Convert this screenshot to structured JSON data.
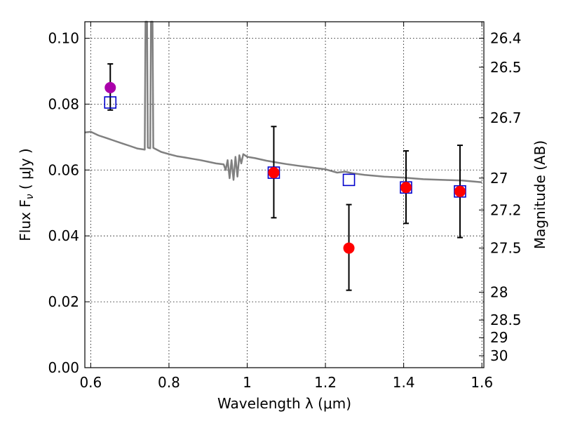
{
  "chart_data": {
    "type": "scatter",
    "xlabel": "Wavelength  λ (μm)",
    "ylabel": "Flux  F",
    "ylabel_sub": "ν",
    "ylabel_unit": " ( μJy )",
    "y2label": "Magnitude (AB)",
    "xlim": [
      0.585,
      1.605
    ],
    "ylim": [
      0.0,
      0.105
    ],
    "grid": true,
    "x_ticks": [
      {
        "value": 0.6,
        "label": "0.6"
      },
      {
        "value": 0.8,
        "label": "0.8"
      },
      {
        "value": 1.0,
        "label": "1"
      },
      {
        "value": 1.2,
        "label": "1.2"
      },
      {
        "value": 1.4,
        "label": "1.4"
      },
      {
        "value": 1.6,
        "label": "1.6"
      }
    ],
    "y_ticks": [
      {
        "value": 0.0,
        "label": "0.00"
      },
      {
        "value": 0.02,
        "label": "0.02"
      },
      {
        "value": 0.04,
        "label": "0.04"
      },
      {
        "value": 0.06,
        "label": "0.06"
      },
      {
        "value": 0.08,
        "label": "0.08"
      },
      {
        "value": 0.1,
        "label": "0.10"
      }
    ],
    "y2_ticks": [
      {
        "mag": 26.4,
        "label": "26.4"
      },
      {
        "mag": 26.5,
        "label": "26.5"
      },
      {
        "mag": 26.7,
        "label": "26.7"
      },
      {
        "mag": 27.0,
        "label": "27"
      },
      {
        "mag": 27.2,
        "label": "27.2"
      },
      {
        "mag": 27.5,
        "label": "27.5"
      },
      {
        "mag": 28.0,
        "label": "28"
      },
      {
        "mag": 28.5,
        "label": "28.5"
      },
      {
        "mag": 29.0,
        "label": "29"
      },
      {
        "mag": 30.0,
        "label": "30"
      }
    ],
    "sed_model": {
      "color": "#808080",
      "points": [
        [
          0.585,
          0.0714
        ],
        [
          0.6,
          0.0716
        ],
        [
          0.62,
          0.0705
        ],
        [
          0.64,
          0.0697
        ],
        [
          0.66,
          0.0689
        ],
        [
          0.68,
          0.0681
        ],
        [
          0.7,
          0.0673
        ],
        [
          0.72,
          0.0665
        ],
        [
          0.738,
          0.0662
        ],
        [
          0.74,
          0.105
        ],
        [
          0.744,
          0.105
        ],
        [
          0.746,
          0.0668
        ],
        [
          0.752,
          0.0666
        ],
        [
          0.754,
          0.105
        ],
        [
          0.758,
          0.105
        ],
        [
          0.76,
          0.0667
        ],
        [
          0.78,
          0.0655
        ],
        [
          0.8,
          0.0648
        ],
        [
          0.82,
          0.0642
        ],
        [
          0.84,
          0.0638
        ],
        [
          0.86,
          0.0634
        ],
        [
          0.88,
          0.063
        ],
        [
          0.9,
          0.0625
        ],
        [
          0.92,
          0.062
        ],
        [
          0.94,
          0.0617
        ],
        [
          0.945,
          0.06
        ],
        [
          0.95,
          0.063
        ],
        [
          0.955,
          0.0575
        ],
        [
          0.96,
          0.063
        ],
        [
          0.965,
          0.057
        ],
        [
          0.97,
          0.064
        ],
        [
          0.975,
          0.058
        ],
        [
          0.98,
          0.0645
        ],
        [
          0.985,
          0.062
        ],
        [
          0.99,
          0.0648
        ],
        [
          1.0,
          0.064
        ],
        [
          1.02,
          0.0636
        ],
        [
          1.05,
          0.0628
        ],
        [
          1.08,
          0.0622
        ],
        [
          1.1,
          0.0618
        ],
        [
          1.13,
          0.0613
        ],
        [
          1.15,
          0.061
        ],
        [
          1.18,
          0.0605
        ],
        [
          1.2,
          0.0602
        ],
        [
          1.23,
          0.0592
        ],
        [
          1.25,
          0.0595
        ],
        [
          1.27,
          0.059
        ],
        [
          1.3,
          0.0585
        ],
        [
          1.35,
          0.058
        ],
        [
          1.4,
          0.0577
        ],
        [
          1.45,
          0.0572
        ],
        [
          1.5,
          0.057
        ],
        [
          1.55,
          0.0568
        ],
        [
          1.6,
          0.0563
        ]
      ]
    },
    "model_fluxes": {
      "marker": "open-square",
      "color": "#0000cc",
      "points": [
        {
          "x": 0.65,
          "y": 0.0805
        },
        {
          "x": 1.068,
          "y": 0.0592
        },
        {
          "x": 1.26,
          "y": 0.057
        },
        {
          "x": 1.406,
          "y": 0.0547
        },
        {
          "x": 1.544,
          "y": 0.0535
        }
      ]
    },
    "observed": [
      {
        "x": 0.65,
        "y": 0.085,
        "yerr": [
          0.0782,
          0.0922
        ],
        "color": "#aa00aa"
      },
      {
        "x": 1.068,
        "y": 0.0592,
        "yerr": [
          0.0455,
          0.0732
        ],
        "color": "#ff0000"
      },
      {
        "x": 1.26,
        "y": 0.0363,
        "yerr": [
          0.0235,
          0.0495
        ],
        "color": "#ff0000"
      },
      {
        "x": 1.406,
        "y": 0.0547,
        "yerr": [
          0.0438,
          0.0658
        ],
        "color": "#ff0000"
      },
      {
        "x": 1.544,
        "y": 0.0535,
        "yerr": [
          0.0395,
          0.0675
        ],
        "color": "#ff0000"
      }
    ]
  }
}
